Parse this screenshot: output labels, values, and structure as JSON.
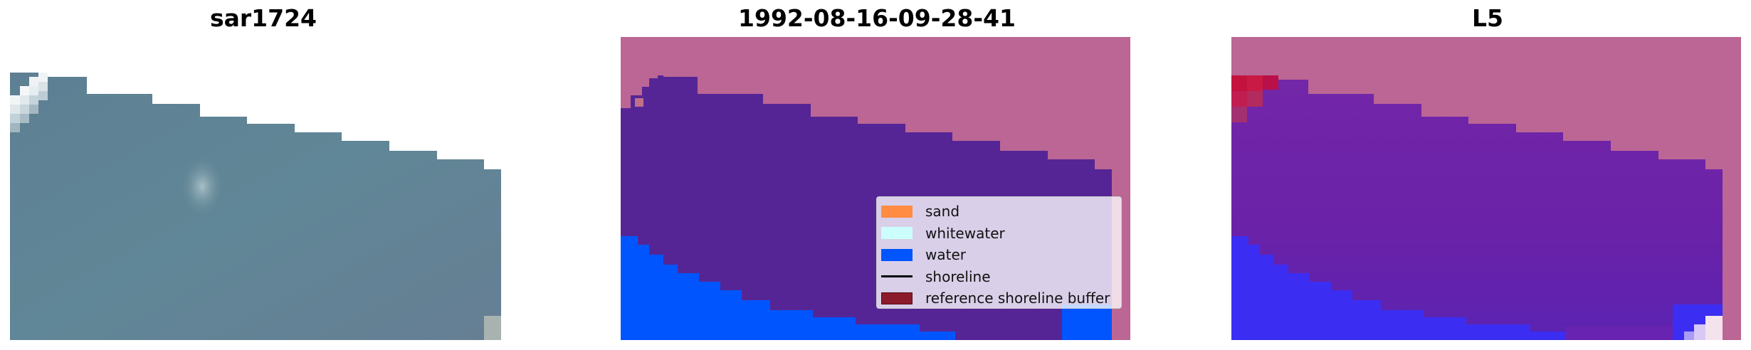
{
  "panels": [
    {
      "title": "sar1724"
    },
    {
      "title": "1992-08-16-09-28-41"
    },
    {
      "title": "L5"
    }
  ],
  "colors": {
    "sand": "#ff8c42",
    "whitewater": "#ccfffb",
    "water": "#0055ff",
    "shoreline": "#000000",
    "reference_buffer": "#8b1a2a",
    "land_overlay": "#bb6694",
    "classified_sea": "#552596",
    "imagery": "#5f8495"
  },
  "legend": {
    "items": [
      {
        "label": "sand",
        "icon": "orange-swatch"
      },
      {
        "label": "whitewater",
        "icon": "cyan-swatch"
      },
      {
        "label": "water",
        "icon": "blue-swatch"
      },
      {
        "label": "shoreline",
        "icon": "black-line"
      },
      {
        "label": "reference shoreline buffer",
        "icon": "darkred-swatch"
      }
    ]
  }
}
